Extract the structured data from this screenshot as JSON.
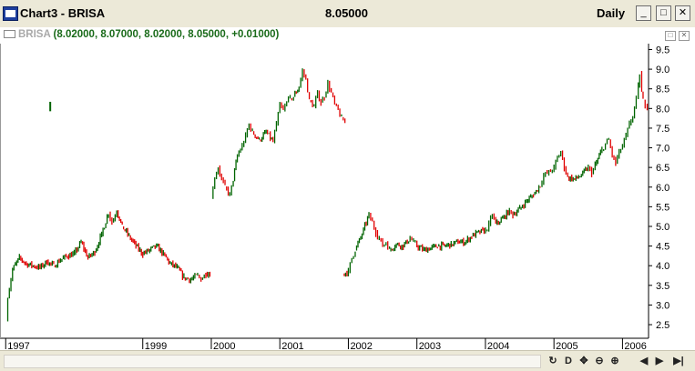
{
  "window": {
    "title": "Chart3 - BRISA",
    "price": "8.05000",
    "period": "Daily",
    "min_label": "_",
    "max_label": "□",
    "close_label": "✕"
  },
  "legend": {
    "name": "BRISA",
    "values": " (8.02000, 8.07000, 8.02000, 8.05000, +0.01000)"
  },
  "pane_buttons": {
    "restore": "□",
    "close": "✕"
  },
  "toolbar": {
    "icons": [
      "refresh-icon",
      "d-icon",
      "pan-icon",
      "zoom-out-icon",
      "zoom-in-icon",
      "scroll-left-icon",
      "scroll-right-icon",
      "scroll-end-icon"
    ],
    "glyphs": [
      "↻",
      "D",
      "✥",
      "⊖",
      "⊕",
      "◀",
      "▶",
      "▶|"
    ]
  },
  "colors": {
    "up": "#006400",
    "down": "#e00000",
    "grid": "#000000",
    "legend": "#1a6b1a"
  },
  "chart_data": {
    "type": "line",
    "style": "ohlc-bars",
    "series_name": "BRISA",
    "y_ticks": [
      "9.5",
      "9.0",
      "8.5",
      "8.0",
      "7.5",
      "7.0",
      "6.5",
      "6.0",
      "5.5",
      "5.0",
      "4.5",
      "4.0",
      "3.5",
      "3.0",
      "2.5"
    ],
    "ylim": [
      2.2,
      9.65
    ],
    "x_ticks": [
      {
        "label": "1997",
        "t": 1997.0
      },
      {
        "label": "1999",
        "t": 1999.0
      },
      {
        "label": "2000",
        "t": 2000.0
      },
      {
        "label": "2001",
        "t": 2001.0
      },
      {
        "label": "2002",
        "t": 2002.0
      },
      {
        "label": "2003",
        "t": 2003.0
      },
      {
        "label": "2004",
        "t": 2004.0
      },
      {
        "label": "2005",
        "t": 2005.0
      },
      {
        "label": "2006",
        "t": 2006.0
      }
    ],
    "xlim": [
      1996.97,
      2006.38
    ],
    "grid": false,
    "segments": [
      [
        [
          1997.0,
          2.6
        ],
        [
          1997.03,
          3.2
        ],
        [
          1997.1,
          3.9
        ],
        [
          1997.2,
          4.2
        ],
        [
          1997.3,
          4.05
        ],
        [
          1997.4,
          4.0
        ],
        [
          1997.5,
          3.95
        ],
        [
          1997.6,
          4.1
        ],
        [
          1997.7,
          4.0
        ],
        [
          1997.8,
          4.15
        ],
        [
          1997.9,
          4.25
        ],
        [
          1998.0,
          4.3
        ],
        [
          1998.1,
          4.6
        ],
        [
          1998.2,
          4.2
        ],
        [
          1998.3,
          4.35
        ],
        [
          1998.4,
          4.8
        ],
        [
          1998.5,
          5.35
        ],
        [
          1998.55,
          5.1
        ],
        [
          1998.62,
          5.4
        ],
        [
          1998.7,
          5.0
        ],
        [
          1998.8,
          4.75
        ],
        [
          1998.9,
          4.5
        ],
        [
          1999.0,
          4.3
        ],
        [
          1999.1,
          4.4
        ],
        [
          1999.2,
          4.5
        ],
        [
          1999.3,
          4.3
        ],
        [
          1999.4,
          4.05
        ],
        [
          1999.5,
          3.95
        ],
        [
          1999.6,
          3.7
        ],
        [
          1999.7,
          3.65
        ],
        [
          1999.8,
          3.75
        ],
        [
          1999.85,
          3.65
        ],
        [
          1999.92,
          3.8
        ],
        [
          1999.98,
          3.8
        ]
      ],
      [
        [
          1997.65,
          8.05
        ]
      ],
      [
        [
          2000.0,
          5.7
        ],
        [
          2000.05,
          6.25
        ],
        [
          2000.1,
          6.5
        ],
        [
          2000.15,
          6.2
        ],
        [
          2000.2,
          6.0
        ],
        [
          2000.27,
          5.8
        ],
        [
          2000.32,
          6.2
        ],
        [
          2000.38,
          6.8
        ],
        [
          2000.45,
          7.05
        ],
        [
          2000.5,
          7.3
        ],
        [
          2000.55,
          7.6
        ],
        [
          2000.6,
          7.4
        ],
        [
          2000.7,
          7.2
        ],
        [
          2000.8,
          7.4
        ],
        [
          2000.9,
          7.15
        ],
        [
          2000.95,
          7.6
        ],
        [
          2001.0,
          8.1
        ],
        [
          2001.05,
          7.95
        ],
        [
          2001.1,
          8.2
        ],
        [
          2001.15,
          8.25
        ],
        [
          2001.2,
          8.3
        ],
        [
          2001.28,
          8.55
        ],
        [
          2001.33,
          8.95
        ],
        [
          2001.38,
          8.75
        ],
        [
          2001.43,
          8.2
        ],
        [
          2001.5,
          8.05
        ],
        [
          2001.55,
          8.4
        ],
        [
          2001.6,
          8.15
        ],
        [
          2001.65,
          8.3
        ],
        [
          2001.7,
          8.65
        ],
        [
          2001.75,
          8.4
        ],
        [
          2001.8,
          8.1
        ],
        [
          2001.85,
          7.95
        ],
        [
          2001.9,
          7.75
        ],
        [
          2001.95,
          7.65
        ]
      ],
      [
        [
          2001.92,
          3.8
        ],
        [
          2002.0,
          3.85
        ],
        [
          2002.05,
          4.2
        ],
        [
          2002.1,
          4.4
        ],
        [
          2002.2,
          4.8
        ],
        [
          2002.3,
          5.3
        ],
        [
          2002.35,
          5.1
        ],
        [
          2002.4,
          4.85
        ],
        [
          2002.45,
          4.7
        ],
        [
          2002.5,
          4.5
        ],
        [
          2002.55,
          4.6
        ],
        [
          2002.6,
          4.4
        ],
        [
          2002.7,
          4.55
        ],
        [
          2002.8,
          4.5
        ],
        [
          2002.9,
          4.7
        ],
        [
          2002.95,
          4.6
        ],
        [
          2003.0,
          4.5
        ],
        [
          2003.1,
          4.4
        ],
        [
          2003.2,
          4.45
        ],
        [
          2003.3,
          4.5
        ],
        [
          2003.4,
          4.5
        ],
        [
          2003.5,
          4.55
        ],
        [
          2003.6,
          4.6
        ],
        [
          2003.7,
          4.6
        ],
        [
          2003.8,
          4.75
        ],
        [
          2003.9,
          4.85
        ],
        [
          2004.0,
          4.9
        ],
        [
          2004.05,
          5.05
        ],
        [
          2004.1,
          5.3
        ],
        [
          2004.15,
          5.05
        ],
        [
          2004.25,
          5.2
        ],
        [
          2004.35,
          5.4
        ],
        [
          2004.4,
          5.3
        ],
        [
          2004.5,
          5.45
        ],
        [
          2004.6,
          5.65
        ],
        [
          2004.7,
          5.8
        ],
        [
          2004.8,
          6.05
        ],
        [
          2004.85,
          6.3
        ],
        [
          2004.9,
          6.35
        ],
        [
          2004.95,
          6.4
        ],
        [
          2005.0,
          6.5
        ],
        [
          2005.05,
          6.75
        ],
        [
          2005.1,
          6.9
        ],
        [
          2005.15,
          6.5
        ],
        [
          2005.2,
          6.25
        ],
        [
          2005.3,
          6.2
        ],
        [
          2005.4,
          6.3
        ],
        [
          2005.5,
          6.5
        ],
        [
          2005.55,
          6.35
        ],
        [
          2005.6,
          6.55
        ],
        [
          2005.7,
          6.95
        ],
        [
          2005.75,
          7.1
        ],
        [
          2005.8,
          7.2
        ],
        [
          2005.85,
          6.8
        ],
        [
          2005.9,
          6.6
        ],
        [
          2005.95,
          6.9
        ],
        [
          2006.0,
          7.05
        ],
        [
          2006.05,
          7.3
        ],
        [
          2006.1,
          7.6
        ],
        [
          2006.15,
          7.8
        ],
        [
          2006.2,
          8.25
        ],
        [
          2006.23,
          8.55
        ],
        [
          2006.25,
          8.9
        ],
        [
          2006.28,
          8.4
        ],
        [
          2006.3,
          8.2
        ],
        [
          2006.33,
          8.1
        ],
        [
          2006.36,
          8.05
        ]
      ]
    ]
  }
}
